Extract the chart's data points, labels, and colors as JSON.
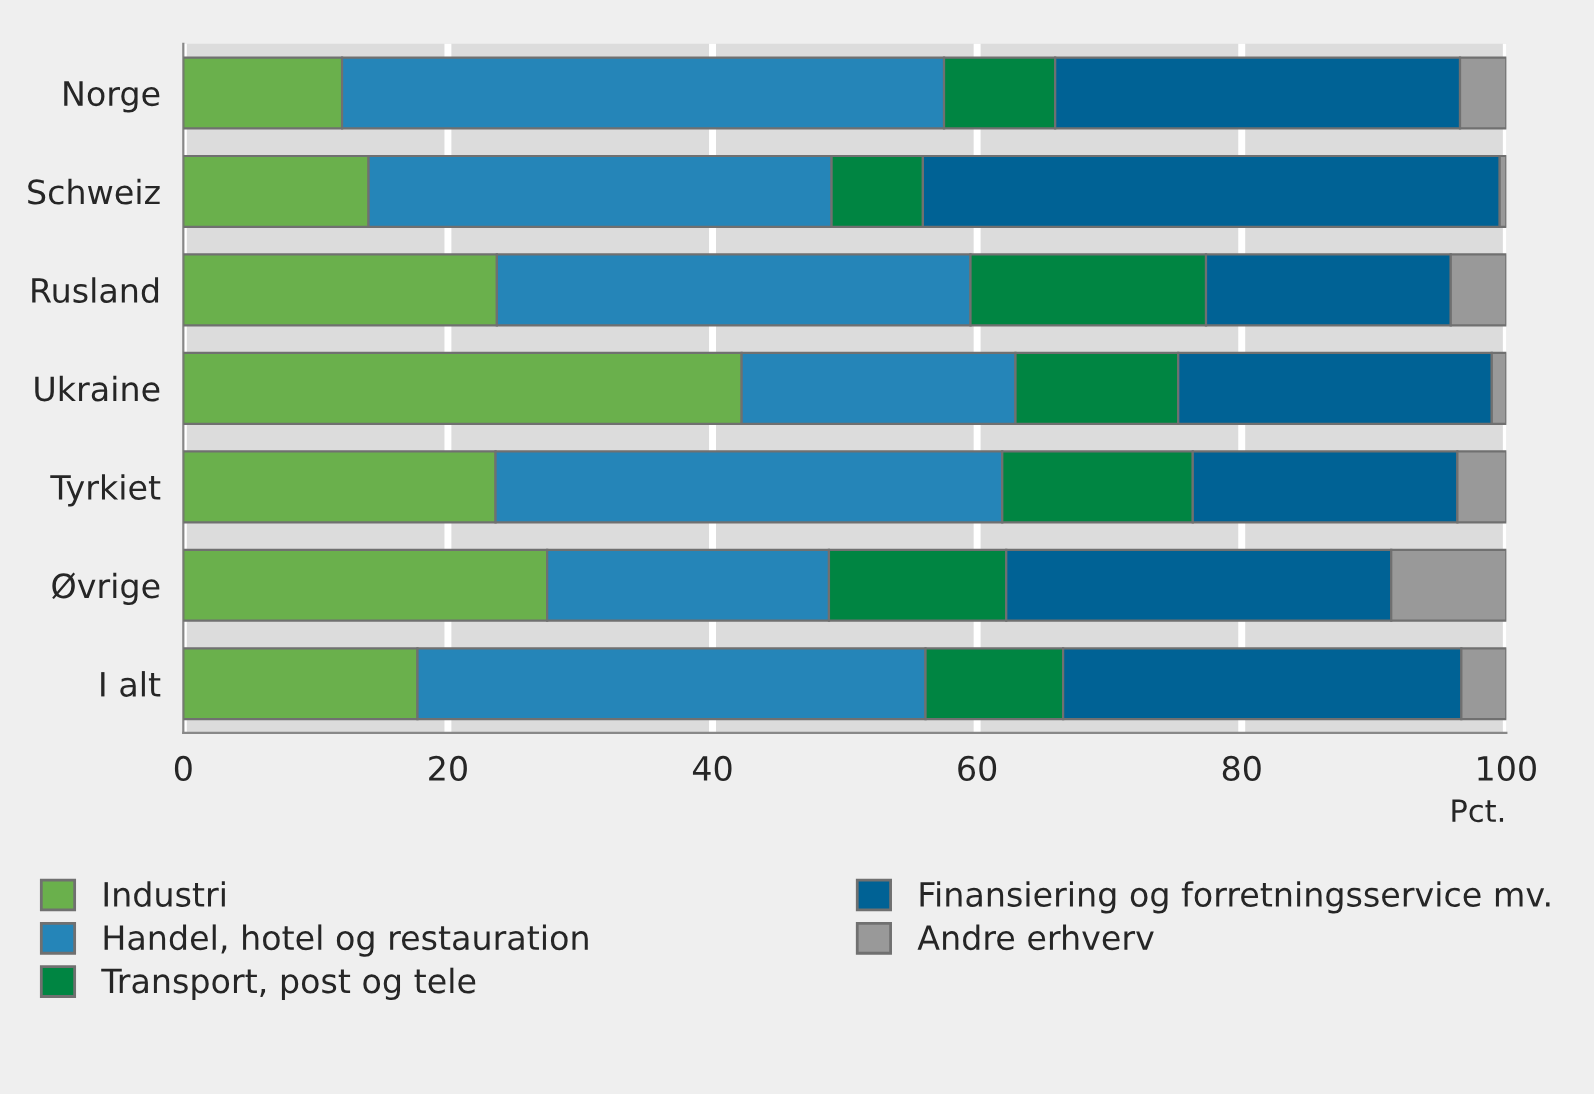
{
  "chart_data": {
    "type": "bar",
    "orientation": "horizontal",
    "stacked": true,
    "categories": [
      "Norge",
      "Schweiz",
      "Rusland",
      "Ukraine",
      "Tyrkiet",
      "Øvrige",
      "I alt"
    ],
    "series": [
      {
        "name": "Industri",
        "color": "#6ab04c",
        "values": [
          12.0,
          14.0,
          23.7,
          42.2,
          23.6,
          27.5,
          17.7
        ]
      },
      {
        "name": "Handel, hotel og restauration",
        "color": "#2585b8",
        "values": [
          45.5,
          35.0,
          35.8,
          20.7,
          38.3,
          21.3,
          38.4
        ]
      },
      {
        "name": "Transport, post og tele",
        "color": "#008542",
        "values": [
          8.4,
          6.9,
          17.8,
          12.3,
          14.4,
          13.4,
          10.4
        ]
      },
      {
        "name": "Finansiering og forretningsservice mv.",
        "color": "#006295",
        "values": [
          30.6,
          43.6,
          18.5,
          23.7,
          20.0,
          29.1,
          30.1
        ]
      },
      {
        "name": "Andre erhverv",
        "color": "#999999",
        "values": [
          3.5,
          0.5,
          4.2,
          1.1,
          3.7,
          8.7,
          3.4
        ]
      }
    ],
    "xlim": [
      0,
      100
    ],
    "xticks": [
      0,
      20,
      40,
      60,
      80,
      100
    ],
    "xlabel": "Pct.",
    "grid": "x",
    "legend": "bottom"
  }
}
